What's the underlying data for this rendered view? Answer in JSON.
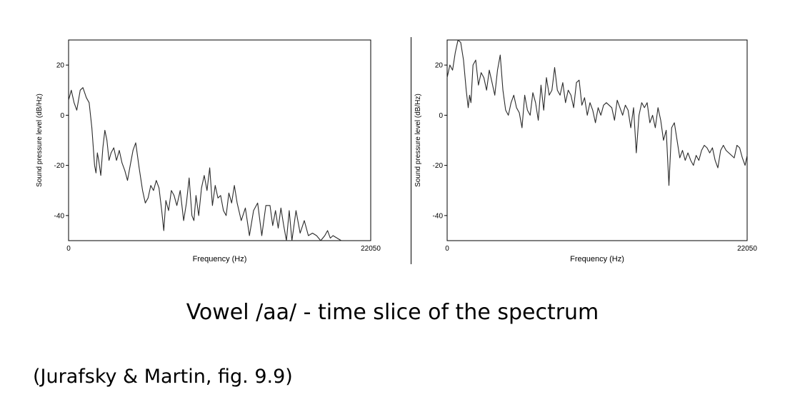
{
  "chart_data": [
    {
      "type": "line",
      "xlabel": "Frequency (Hz)",
      "ylabel": "Sound pressure level (dB/Hz)",
      "xlim": [
        0,
        22050
      ],
      "ylim": [
        -50,
        30
      ],
      "xticks": [
        "0",
        "22050"
      ],
      "yticks": [
        20,
        0,
        -20,
        -40
      ],
      "grid": false,
      "series": [
        {
          "x": [
            0,
            200,
            400,
            600,
            850,
            1050,
            1300,
            1500,
            1700,
            1900,
            2000,
            2100,
            2200,
            2350,
            2500,
            2650,
            2800,
            2950,
            3100,
            3300,
            3500,
            3700,
            3900,
            4100,
            4300,
            4500,
            4700,
            4900,
            5150,
            5400,
            5600,
            5800,
            6000,
            6200,
            6400,
            6600,
            6800,
            6950,
            7100,
            7300,
            7500,
            7700,
            7900,
            8150,
            8400,
            8600,
            8800,
            9000,
            9150,
            9300,
            9500,
            9700,
            9900,
            10100,
            10300,
            10500,
            10700,
            10900,
            11100,
            11300,
            11500,
            11700,
            11900,
            12100,
            12300,
            12600,
            12900,
            13200,
            13500,
            13800,
            14100,
            14400,
            14700,
            14900,
            15100,
            15300,
            15500,
            15700,
            15900,
            16100,
            16300,
            16600,
            16900,
            17200,
            17500,
            17800,
            18100,
            18400,
            18700,
            18900,
            19100,
            19300,
            19600,
            19900
          ],
          "y": [
            6,
            10,
            5,
            2,
            10,
            11,
            7,
            5,
            -5,
            -20,
            -23,
            -15,
            -18,
            -24,
            -13,
            -6,
            -10,
            -18,
            -15,
            -13,
            -18,
            -14,
            -19,
            -22,
            -26,
            -20,
            -14,
            -11,
            -21,
            -30,
            -35,
            -33,
            -28,
            -30,
            -26,
            -29,
            -38,
            -46,
            -34,
            -38,
            -30,
            -32,
            -36,
            -30,
            -42,
            -35,
            -25,
            -40,
            -42,
            -32,
            -40,
            -29,
            -24,
            -30,
            -21,
            -36,
            -28,
            -33,
            -32,
            -38,
            -40,
            -31,
            -35,
            -28,
            -35,
            -42,
            -37,
            -48,
            -38,
            -35,
            -48,
            -36,
            -36,
            -44,
            -38,
            -45,
            -37,
            -44,
            -50,
            -38,
            -50,
            -38,
            -47,
            -42,
            -48,
            -47,
            -48,
            -50,
            -48,
            -46,
            -49,
            -48,
            -49,
            -50
          ]
        }
      ]
    },
    {
      "type": "line",
      "xlabel": "Frequency (Hz)",
      "ylabel": "Sound pressure level (dB/Hz)",
      "xlim": [
        0,
        22050
      ],
      "ylim": [
        -50,
        30
      ],
      "xticks": [
        "0",
        "22050"
      ],
      "yticks": [
        20,
        0,
        -20,
        -40
      ],
      "grid": false,
      "series": [
        {
          "x": [
            0,
            200,
            400,
            600,
            800,
            1000,
            1200,
            1400,
            1550,
            1650,
            1750,
            1900,
            2100,
            2300,
            2500,
            2700,
            2900,
            3100,
            3300,
            3500,
            3700,
            3900,
            4100,
            4300,
            4500,
            4700,
            4900,
            5100,
            5300,
            5500,
            5700,
            5900,
            6100,
            6300,
            6500,
            6700,
            6900,
            7100,
            7300,
            7500,
            7700,
            7900,
            8100,
            8300,
            8500,
            8700,
            8900,
            9100,
            9300,
            9500,
            9700,
            9900,
            10100,
            10300,
            10500,
            10700,
            10900,
            11100,
            11300,
            11500,
            11700,
            11900,
            12100,
            12300,
            12500,
            12700,
            12900,
            13100,
            13300,
            13500,
            13700,
            13900,
            14100,
            14300,
            14500,
            14700,
            14900,
            15100,
            15300,
            15500,
            15700,
            15900,
            16100,
            16300,
            16500,
            16700,
            16900,
            17100,
            17300,
            17500,
            17700,
            17900,
            18100,
            18300,
            18500,
            18700,
            18900,
            19100,
            19300,
            19500,
            19700,
            19900,
            20100,
            20300,
            20500,
            20700,
            20900,
            21100,
            21300,
            21500,
            21700,
            21900,
            22050
          ],
          "y": [
            15,
            20,
            18,
            25,
            30,
            29,
            22,
            10,
            3,
            8,
            5,
            20,
            22,
            12,
            17,
            15,
            10,
            18,
            13,
            8,
            18,
            24,
            10,
            2,
            0,
            5,
            8,
            3,
            1,
            -5,
            8,
            2,
            0,
            9,
            5,
            -2,
            12,
            2,
            15,
            8,
            10,
            19,
            10,
            8,
            13,
            5,
            10,
            8,
            3,
            13,
            14,
            4,
            7,
            0,
            5,
            2,
            -3,
            3,
            0,
            4,
            5,
            4,
            3,
            -2,
            6,
            3,
            0,
            4,
            2,
            -5,
            3,
            -15,
            0,
            5,
            3,
            5,
            -3,
            0,
            -5,
            3,
            -2,
            -10,
            -6,
            -28,
            -5,
            -3,
            -10,
            -17,
            -14,
            -18,
            -15,
            -18,
            -20,
            -16,
            -18,
            -14,
            -12,
            -13,
            -15,
            -13,
            -18,
            -21,
            -14,
            -12,
            -14,
            -15,
            -16,
            -17,
            -12,
            -13,
            -17,
            -20,
            -16
          ]
        }
      ]
    }
  ],
  "slide": {
    "title": "Vowel /aa/ - time slice of the spectrum",
    "citation": "(Jurafsky & Martin, fig. 9.9)"
  },
  "colors": {
    "line": "#2a2a2a",
    "axis": "#000000"
  }
}
